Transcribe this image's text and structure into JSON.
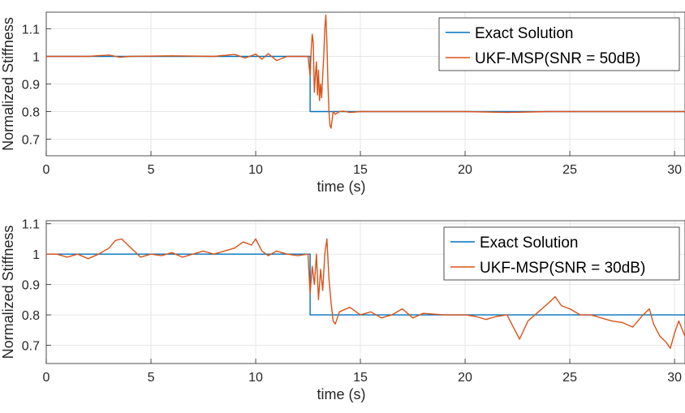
{
  "colors": {
    "exact": "#0072BD",
    "ukf": "#D95319",
    "grid": "#e6e6e6",
    "axis": "#262626"
  },
  "chart_data": [
    {
      "type": "line",
      "xlabel": "time (s)",
      "ylabel": "Normalized Stiffness",
      "xlim": [
        0,
        30.5
      ],
      "ylim": [
        0.64,
        1.16
      ],
      "xticks": [
        0,
        5,
        10,
        15,
        20,
        25,
        30
      ],
      "xtick_labels": [
        "0",
        "5",
        "10",
        "15",
        "20",
        "25",
        "30"
      ],
      "yticks": [
        0.7,
        0.8,
        0.9,
        1.0,
        1.1
      ],
      "ytick_labels": [
        "0.7",
        "0.8",
        "0.9",
        "1",
        "1.1"
      ],
      "grid": true,
      "legend_position": "top-right",
      "series": [
        {
          "name": "Exact Solution",
          "x": [
            0,
            12.6,
            12.6,
            30.5
          ],
          "y": [
            1.0,
            1.0,
            0.8,
            0.8
          ]
        },
        {
          "name": "UKF-MSP(SNR = 50dB)",
          "x": [
            0,
            2.0,
            3.0,
            3.5,
            4.0,
            6.0,
            8.0,
            9.0,
            9.5,
            10.0,
            10.3,
            10.6,
            11.0,
            11.5,
            12.0,
            12.5,
            12.6,
            12.65,
            12.7,
            12.75,
            12.8,
            12.85,
            12.9,
            12.95,
            13.0,
            13.05,
            13.1,
            13.15,
            13.2,
            13.25,
            13.3,
            13.35,
            13.4,
            13.45,
            13.5,
            13.55,
            13.6,
            13.65,
            13.7,
            13.8,
            13.9,
            14.0,
            14.2,
            14.5,
            15.0,
            16.0,
            17.0,
            18.0,
            19.0,
            20.0,
            22.0,
            24.0,
            26.0,
            28.0,
            30.0,
            30.5
          ],
          "y": [
            1.0,
            1.0,
            1.005,
            0.997,
            1.0,
            1.002,
            1.0,
            1.007,
            0.994,
            1.008,
            0.99,
            1.01,
            0.985,
            1.0,
            1.0,
            1.0,
            0.93,
            1.02,
            1.08,
            1.05,
            0.87,
            0.93,
            0.98,
            0.86,
            0.95,
            0.84,
            0.9,
            0.85,
            0.93,
            1.0,
            1.1,
            1.15,
            1.05,
            0.9,
            0.8,
            0.75,
            0.74,
            0.77,
            0.8,
            0.79,
            0.795,
            0.8,
            0.802,
            0.797,
            0.8,
            0.8,
            0.8,
            0.8,
            0.8,
            0.8,
            0.797,
            0.8,
            0.8,
            0.8,
            0.8,
            0.8
          ]
        }
      ]
    },
    {
      "type": "line",
      "xlabel": "time (s)",
      "ylabel": "Normalized Stiffness",
      "xlim": [
        0,
        30.5
      ],
      "ylim": [
        0.64,
        1.11
      ],
      "xticks": [
        0,
        5,
        10,
        15,
        20,
        25,
        30
      ],
      "xtick_labels": [
        "0",
        "5",
        "10",
        "15",
        "20",
        "25",
        "30"
      ],
      "yticks": [
        0.7,
        0.8,
        0.9,
        1.0,
        1.1
      ],
      "ytick_labels": [
        "0.7",
        "0.8",
        "0.9",
        "1",
        "1.1"
      ],
      "grid": true,
      "legend_position": "top-right",
      "series": [
        {
          "name": "Exact Solution",
          "x": [
            0,
            12.6,
            12.6,
            30.5
          ],
          "y": [
            1.0,
            1.0,
            0.8,
            0.8
          ]
        },
        {
          "name": "UKF-MSP(SNR = 30dB)",
          "x": [
            0,
            0.5,
            1.0,
            1.5,
            2.0,
            2.5,
            3.0,
            3.3,
            3.6,
            3.9,
            4.2,
            4.5,
            5.0,
            5.5,
            6.0,
            6.5,
            7.0,
            7.5,
            8.0,
            8.5,
            9.0,
            9.4,
            9.8,
            10.0,
            10.3,
            10.6,
            11.0,
            11.5,
            12.0,
            12.5,
            12.6,
            12.7,
            12.8,
            12.9,
            13.0,
            13.1,
            13.2,
            13.3,
            13.4,
            13.5,
            13.6,
            13.7,
            13.8,
            14.0,
            14.5,
            15.0,
            15.5,
            16.0,
            16.5,
            17.0,
            17.5,
            18.0,
            19.0,
            20.0,
            20.5,
            21.0,
            21.5,
            22.0,
            22.3,
            22.6,
            23.0,
            23.5,
            24.0,
            24.3,
            24.6,
            25.0,
            25.5,
            26.0,
            26.5,
            27.0,
            27.5,
            28.0,
            28.5,
            28.8,
            29.0,
            29.3,
            29.6,
            29.8,
            30.0,
            30.2,
            30.5
          ],
          "y": [
            1.0,
            1.0,
            0.99,
            1.0,
            0.985,
            1.0,
            1.02,
            1.045,
            1.05,
            1.03,
            1.01,
            0.99,
            1.0,
            0.995,
            1.005,
            0.99,
            1.0,
            1.01,
            1.0,
            1.01,
            1.02,
            1.04,
            1.03,
            1.05,
            1.01,
            0.995,
            1.01,
            1.0,
            0.995,
            1.0,
            0.87,
            0.96,
            0.9,
            1.0,
            0.85,
            0.95,
            0.88,
            1.0,
            1.05,
            0.92,
            0.84,
            0.78,
            0.77,
            0.81,
            0.825,
            0.8,
            0.81,
            0.79,
            0.8,
            0.82,
            0.79,
            0.805,
            0.8,
            0.8,
            0.795,
            0.785,
            0.795,
            0.8,
            0.76,
            0.72,
            0.78,
            0.81,
            0.84,
            0.86,
            0.83,
            0.82,
            0.8,
            0.8,
            0.79,
            0.78,
            0.775,
            0.76,
            0.8,
            0.82,
            0.77,
            0.73,
            0.71,
            0.69,
            0.74,
            0.78,
            0.73
          ]
        }
      ]
    }
  ]
}
